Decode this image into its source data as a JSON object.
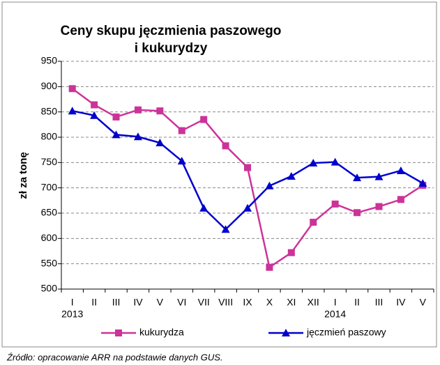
{
  "chart_data": {
    "type": "line",
    "title": [
      "Ceny skupu jęczmienia paszowego",
      "i kukurydzy"
    ],
    "y_label": "zł za tonę",
    "categories": [
      "I",
      "II",
      "III",
      "IV",
      "V",
      "VI",
      "VII",
      "VIII",
      "IX",
      "X",
      "XI",
      "XII",
      "I",
      "II",
      "III",
      "IV",
      "V"
    ],
    "years": [
      "2013",
      null,
      null,
      null,
      null,
      null,
      null,
      null,
      null,
      null,
      null,
      null,
      "2014",
      null,
      null,
      null,
      null
    ],
    "series": [
      {
        "name": "kukurydza",
        "color": "#cc3399",
        "marker": "square",
        "values": [
          896,
          864,
          840,
          854,
          852,
          813,
          835,
          783,
          740,
          543,
          572,
          632,
          668,
          651,
          663,
          677,
          705
        ]
      },
      {
        "name": "jęczmień paszowy",
        "color": "#0000cc",
        "marker": "triangle",
        "values": [
          852,
          843,
          805,
          801,
          789,
          753,
          660,
          618,
          660,
          704,
          723,
          749,
          751,
          720,
          722,
          734,
          709
        ]
      }
    ],
    "ylim": [
      500,
      950
    ],
    "yticks": [
      500,
      550,
      600,
      650,
      700,
      750,
      800,
      850,
      900,
      950
    ],
    "grid": true,
    "source": "Źródło: opracowanie ARR na podstawie danych GUS."
  }
}
